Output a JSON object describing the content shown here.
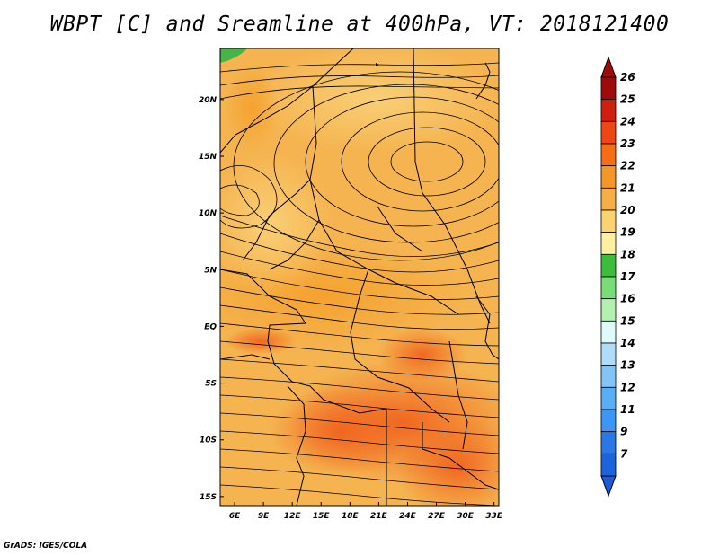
{
  "title": "WBPT [C] and Sreamline at 400hPa, VT: 2018121400",
  "footer": "GrADS: IGES/COLA",
  "map": {
    "lon_ticks": [
      "6E",
      "9E",
      "12E",
      "15E",
      "18E",
      "21E",
      "24E",
      "27E",
      "30E",
      "33E"
    ],
    "lat_ticks": [
      "20N",
      "15N",
      "10N",
      "5N",
      "EQ",
      "5S",
      "10S",
      "15S"
    ],
    "lon_range": [
      4.5,
      33.5
    ],
    "lat_range": [
      -15.8,
      24.5
    ],
    "field": "WBPT",
    "field_unit": "C",
    "level": "400hPa",
    "valid_time": "2018121400"
  },
  "colorbar": {
    "labels": [
      "7",
      "9",
      "11",
      "12",
      "13",
      "14",
      "15",
      "16",
      "17",
      "18",
      "19",
      "20",
      "21",
      "22",
      "23",
      "24",
      "25",
      "26"
    ],
    "colors": [
      "#1c64dc",
      "#2a78e8",
      "#3c96f5",
      "#5aaef5",
      "#82c4f8",
      "#b0dcfa",
      "#e0fafa",
      "#b4f0b0",
      "#78dc78",
      "#3cbe3c",
      "#fff0a0",
      "#fad26e",
      "#f5af46",
      "#f59628",
      "#f56e14",
      "#ef4614",
      "#d21e0f",
      "#a00a0a"
    ],
    "under_color": "#1e5adc",
    "over_color": "#a00a0a"
  }
}
